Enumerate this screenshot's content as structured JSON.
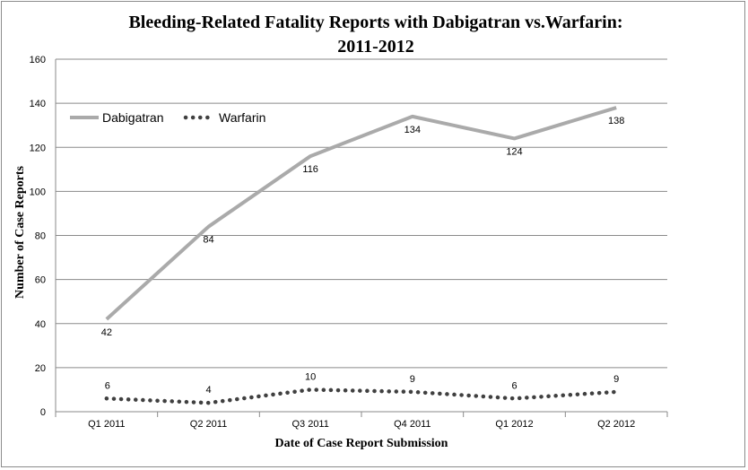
{
  "chart_data": {
    "type": "line",
    "title_lines": [
      "Bleeding-Related Fatality Reports with Dabigatran vs.Warfarin:",
      "2011-2012"
    ],
    "xlabel": "Date of Case Report Submission",
    "ylabel": "Number of Case Reports",
    "categories": [
      "Q1 2011",
      "Q2 2011",
      "Q3 2011",
      "Q4 2011",
      "Q1 2012",
      "Q2 2012"
    ],
    "ylim": [
      0,
      160
    ],
    "yticks": [
      0,
      20,
      40,
      60,
      80,
      100,
      120,
      140,
      160
    ],
    "grid": true,
    "legend_position": "top-left",
    "series": [
      {
        "name": "Dabigatran",
        "values": [
          42,
          84,
          116,
          134,
          124,
          138
        ],
        "color": "#aaaaaa",
        "style": "solid",
        "label_position": "below"
      },
      {
        "name": "Warfarin",
        "values": [
          6,
          4,
          10,
          9,
          6,
          9
        ],
        "color": "#404040",
        "style": "dotted",
        "label_position": "above"
      }
    ]
  }
}
